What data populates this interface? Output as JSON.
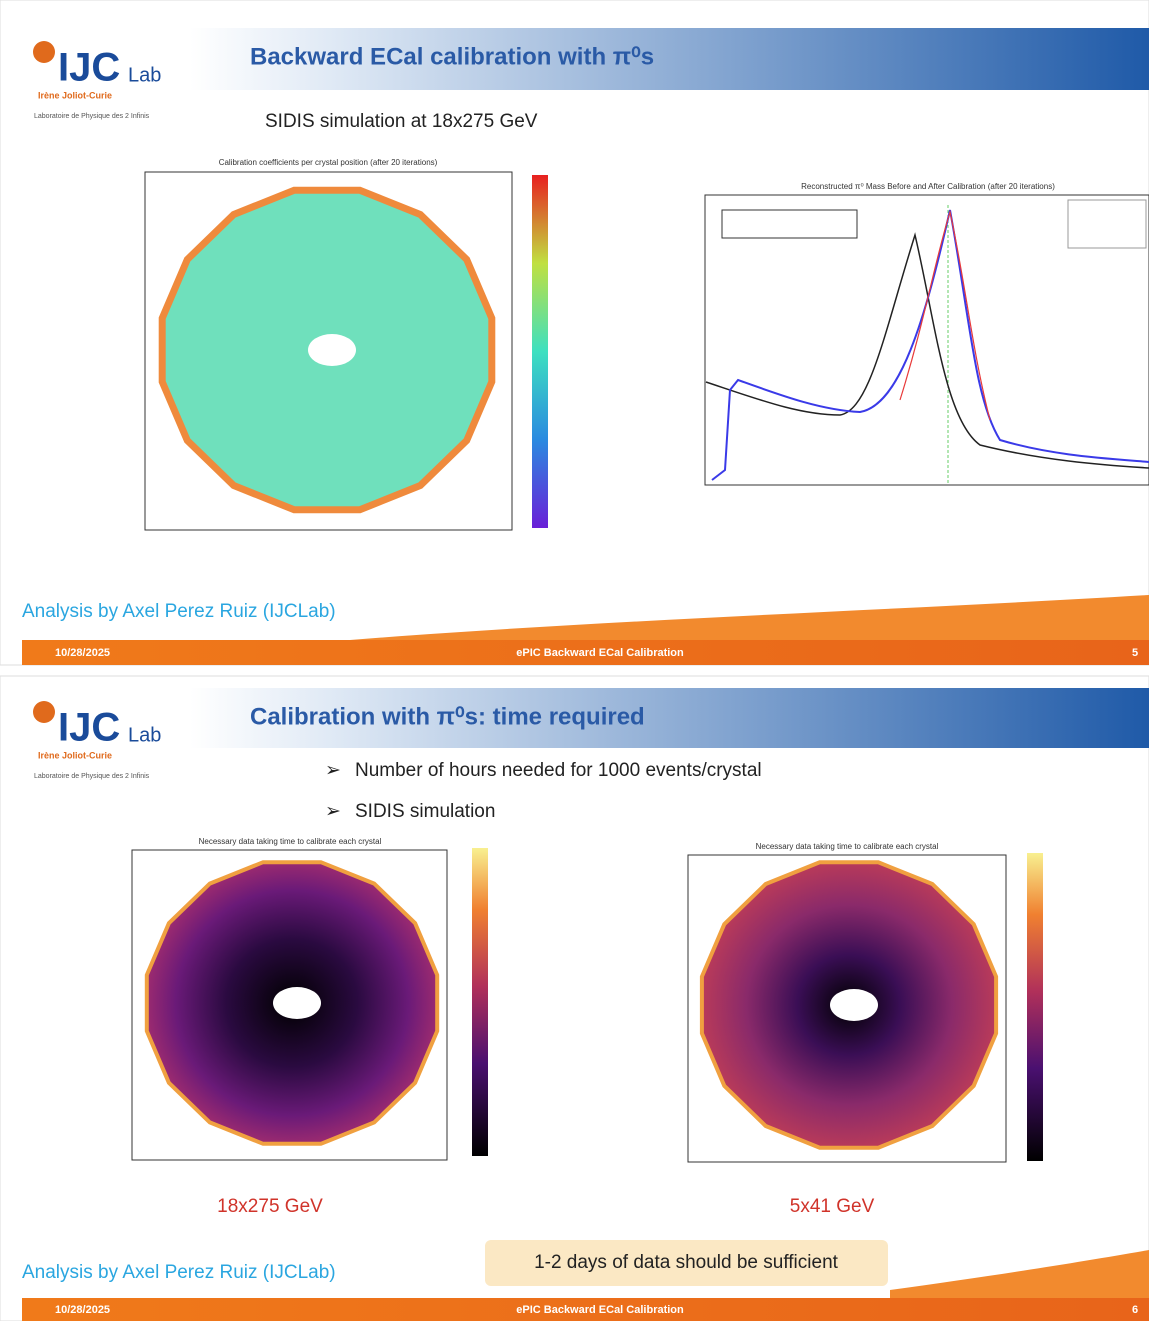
{
  "slides": [
    {
      "logo": {
        "name": "IJC",
        "suffix": "Lab",
        "institute": "Irène Joliot-Curie",
        "tagline": "Laboratoire de Physique des 2 Infinis"
      },
      "header": {
        "title": "Backward ECal calibration with π⁰s"
      },
      "subtitle": "SIDIS simulation at 18x275 GeV",
      "figures": [
        {
          "title": "Calibration coefficients per crystal position (after 20 iterations)"
        },
        {
          "title": "Reconstructed π⁰ Mass Before and After Calibration (after 20 iterations)"
        }
      ],
      "credit": "Analysis by Axel Perez Ruiz (IJCLab)",
      "footer": {
        "date": "10/28/2025",
        "title": "ePIC Backward ECal Calibration",
        "page": "5"
      }
    },
    {
      "logo": {
        "name": "IJC",
        "suffix": "Lab",
        "institute": "Irène Joliot-Curie",
        "tagline": "Laboratoire de Physique des 2 Infinis"
      },
      "header": {
        "title": "Calibration with π⁰s: time required"
      },
      "bullets": [
        "Number of hours needed for 1000 events/crystal",
        "SIDIS simulation"
      ],
      "figures": [
        {
          "title": "Necessary data taking time to calibrate each crystal",
          "caption": "18x275 GeV"
        },
        {
          "title": "Necessary data taking time to calibrate each crystal",
          "caption": "5x41 GeV"
        }
      ],
      "note": "1-2 days of data should be sufficient",
      "credit": "Analysis by Axel Perez Ruiz (IJCLab)",
      "footer": {
        "date": "10/28/2025",
        "title": "ePIC Backward ECal Calibration",
        "page": "6"
      }
    }
  ]
}
